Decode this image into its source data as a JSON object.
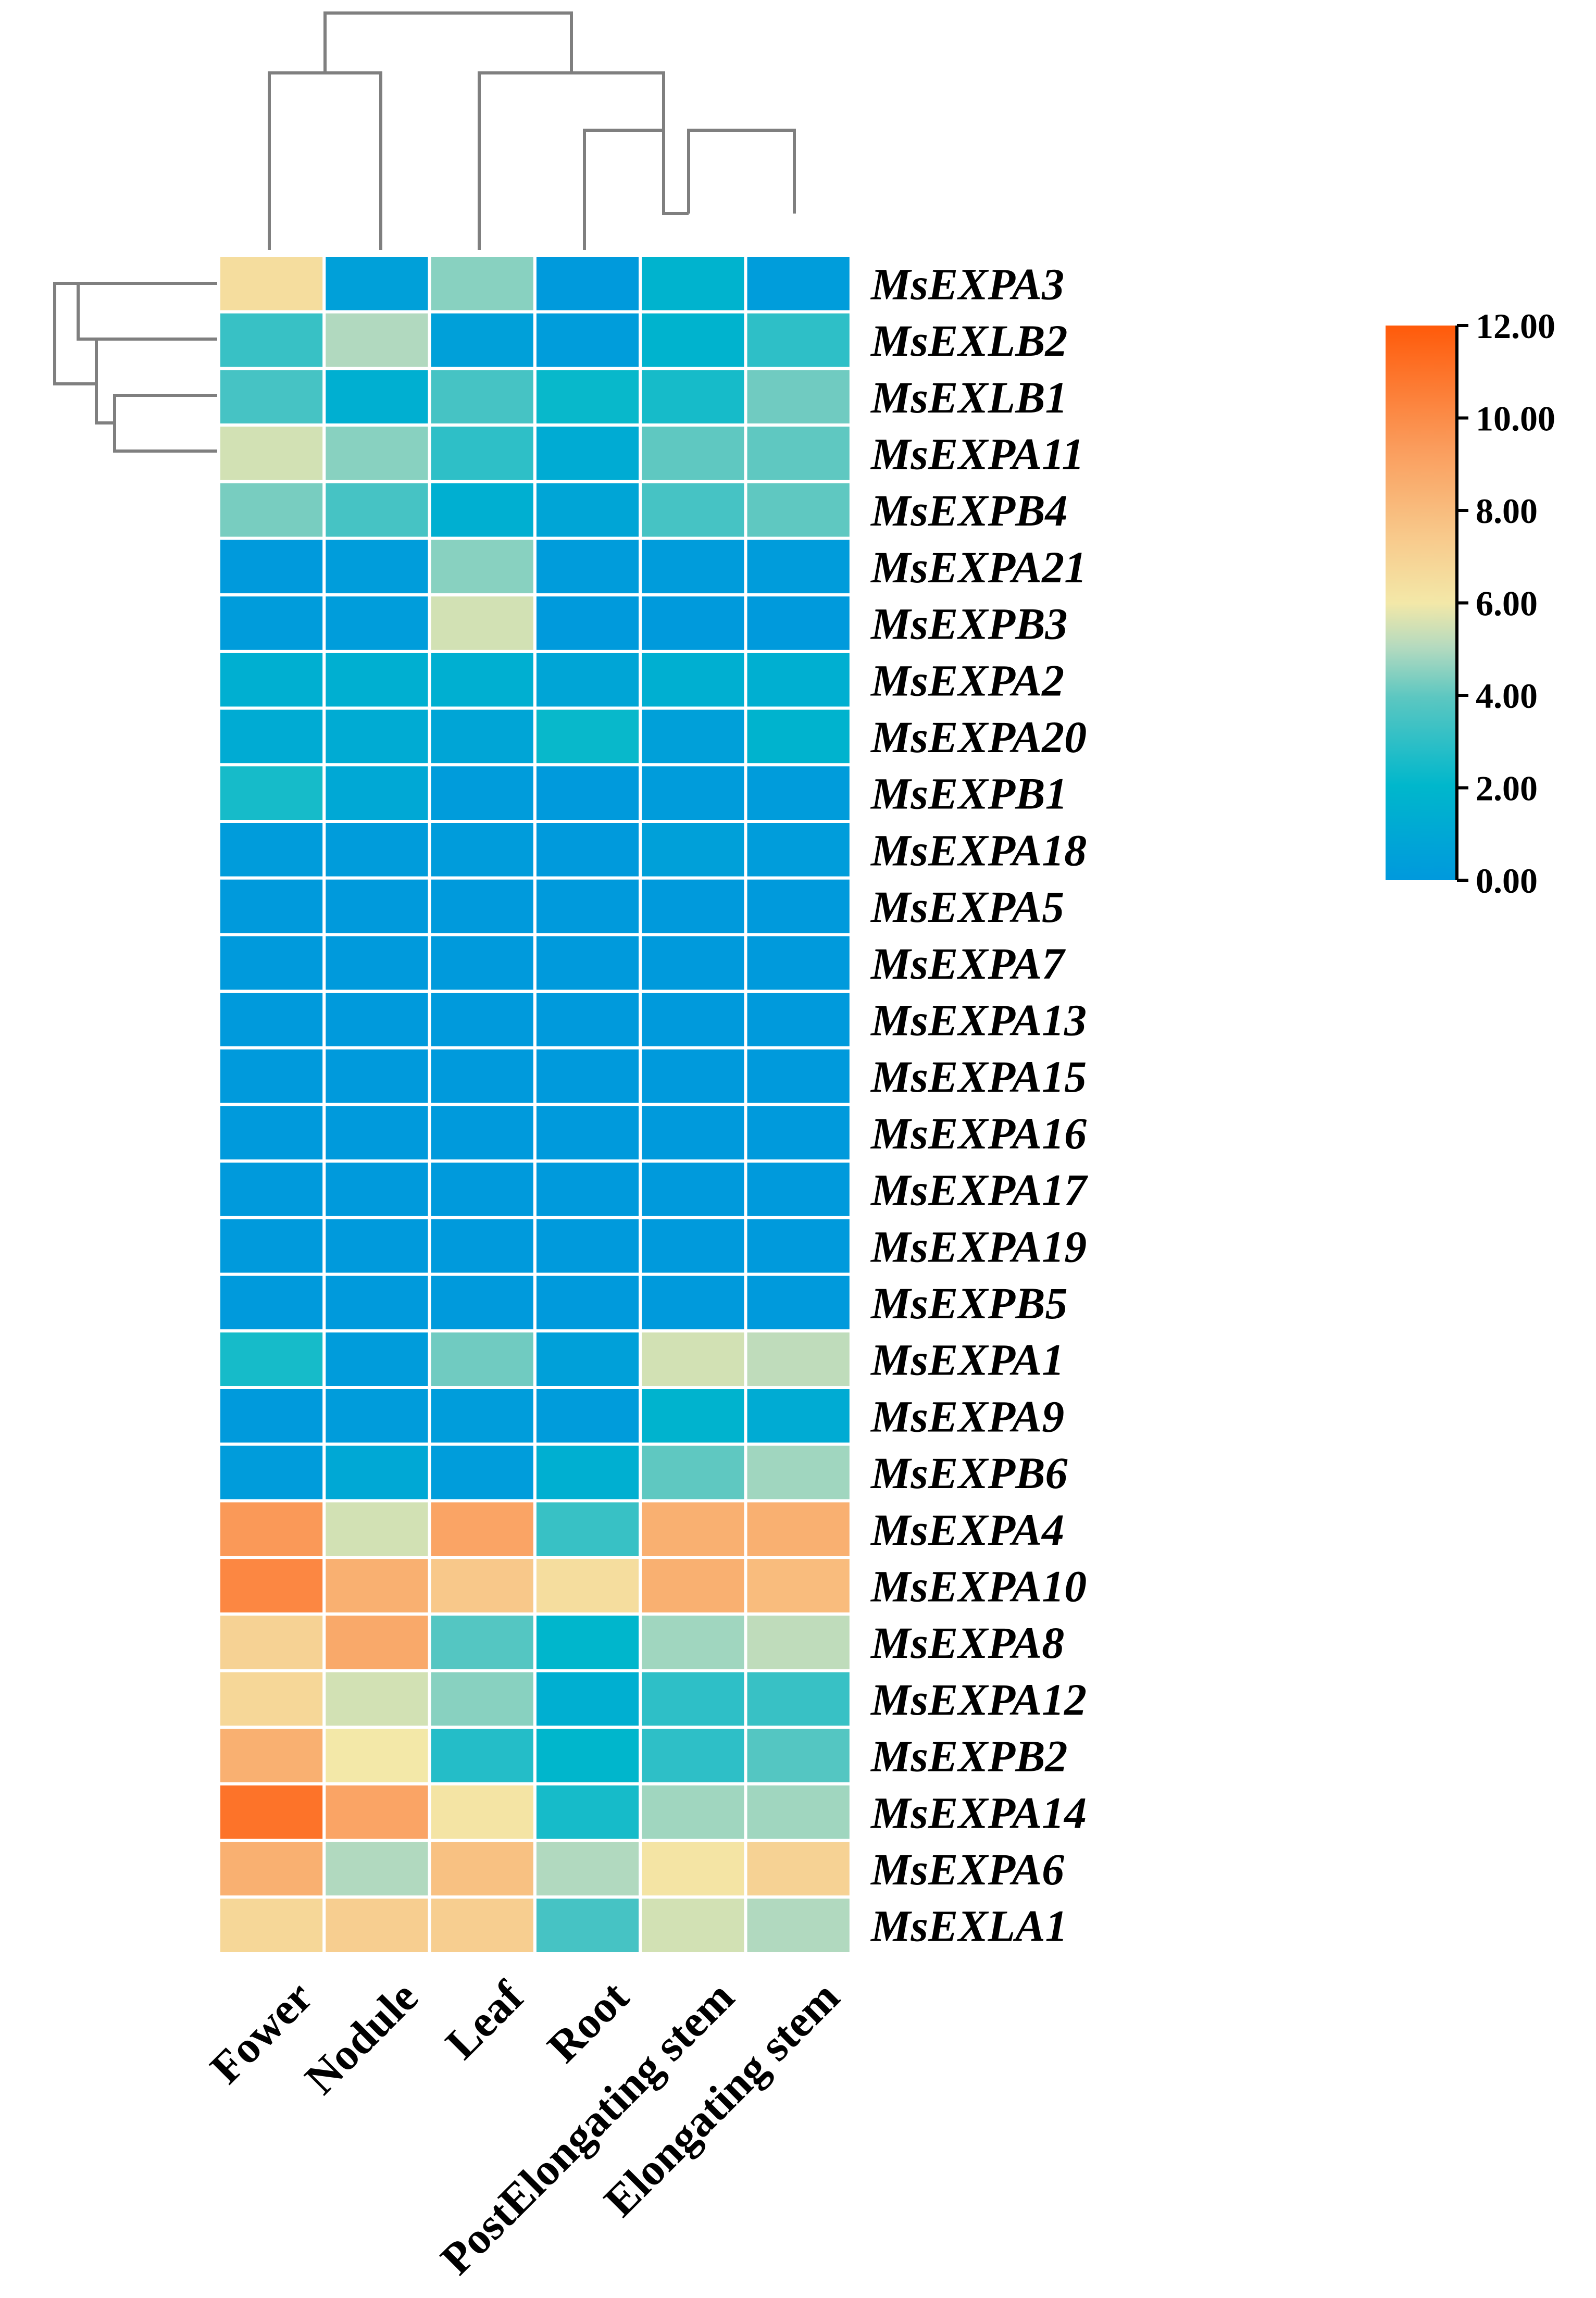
{
  "chart_data": {
    "type": "heatmap",
    "title": "",
    "columns": [
      "Fower",
      "Nodule",
      "Leaf",
      "Root",
      "PostElongating stem",
      "Elongating stem"
    ],
    "rows": [
      "MsEXPA3",
      "MsEXLB2",
      "MsEXLB1",
      "MsEXPA11",
      "MsEXPB4",
      "MsEXPA21",
      "MsEXPB3",
      "MsEXPA2",
      "MsEXPA20",
      "MsEXPB1",
      "MsEXPA18",
      "MsEXPA5",
      "MsEXPA7",
      "MsEXPA13",
      "MsEXPA15",
      "MsEXPA16",
      "MsEXPA17",
      "MsEXPA19",
      "MsEXPB5",
      "MsEXPA1",
      "MsEXPA9",
      "MsEXPB6",
      "MsEXPA4",
      "MsEXPA10",
      "MsEXPA8",
      "MsEXPA12",
      "MsEXPB2",
      "MsEXPA14",
      "MsEXPA6",
      "MsEXLA1"
    ],
    "values": [
      [
        6.5,
        0.5,
        4.5,
        0.1,
        1.8,
        0.3
      ],
      [
        3.2,
        5.0,
        0.5,
        0.3,
        1.8,
        3.0
      ],
      [
        3.5,
        1.5,
        3.5,
        2.2,
        2.5,
        4.2
      ],
      [
        5.5,
        4.5,
        3.0,
        1.2,
        4.0,
        4.0
      ],
      [
        4.3,
        3.5,
        1.5,
        0.8,
        3.5,
        4.0
      ],
      [
        0.1,
        0.3,
        4.5,
        0.2,
        0.2,
        0.2
      ],
      [
        0.2,
        0.3,
        5.5,
        0.1,
        0.1,
        0.1
      ],
      [
        1.5,
        1.5,
        1.5,
        0.8,
        1.5,
        1.5
      ],
      [
        1.2,
        1.2,
        0.8,
        2.2,
        0.5,
        1.8
      ],
      [
        2.5,
        1.0,
        0.2,
        0.1,
        0.2,
        0.2
      ],
      [
        0.2,
        0.2,
        0.2,
        0.1,
        0.5,
        0.3
      ],
      [
        0.1,
        0.1,
        0.1,
        0.1,
        0.1,
        0.1
      ],
      [
        0.1,
        0.1,
        0.1,
        0.1,
        0.1,
        0.1
      ],
      [
        0.1,
        0.1,
        0.1,
        0.1,
        0.1,
        0.1
      ],
      [
        0.1,
        0.1,
        0.1,
        0.1,
        0.1,
        0.1
      ],
      [
        0.1,
        0.1,
        0.1,
        0.1,
        0.1,
        0.1
      ],
      [
        0.1,
        0.1,
        0.1,
        0.1,
        0.1,
        0.1
      ],
      [
        0.1,
        0.1,
        0.1,
        0.1,
        0.1,
        0.1
      ],
      [
        0.1,
        0.1,
        0.1,
        0.1,
        0.1,
        0.1
      ],
      [
        2.5,
        0.2,
        4.2,
        0.5,
        5.5,
        5.2
      ],
      [
        0.1,
        0.2,
        0.3,
        0.2,
        1.8,
        1.2
      ],
      [
        0.2,
        1.0,
        0.3,
        1.5,
        4.0,
        4.8
      ],
      [
        9.5,
        5.5,
        9.0,
        3.2,
        8.5,
        8.5
      ],
      [
        10.2,
        8.5,
        7.5,
        6.5,
        8.5,
        8.0
      ],
      [
        7.0,
        8.8,
        3.8,
        2.0,
        4.8,
        5.2
      ],
      [
        6.8,
        5.5,
        4.5,
        1.5,
        3.0,
        3.2
      ],
      [
        8.5,
        6.0,
        2.8,
        2.0,
        3.0,
        3.8
      ],
      [
        11.0,
        9.0,
        6.2,
        2.5,
        4.8,
        4.8
      ],
      [
        8.5,
        5.0,
        7.8,
        5.0,
        6.2,
        7.0
      ],
      [
        6.8,
        7.2,
        7.2,
        3.5,
        5.5,
        5.0
      ]
    ],
    "color_scale": {
      "min": 0,
      "max": 12,
      "ticks": [
        "0.00",
        "2.00",
        "4.00",
        "6.00",
        "8.00",
        "10.00",
        "12.00"
      ],
      "colors": [
        "#0099DD",
        "#00B7CC",
        "#5CC7C1",
        "#B4DABF",
        "#F3E8A8",
        "#F8C98B",
        "#FA9C5C",
        "#FF5A0A"
      ]
    }
  }
}
